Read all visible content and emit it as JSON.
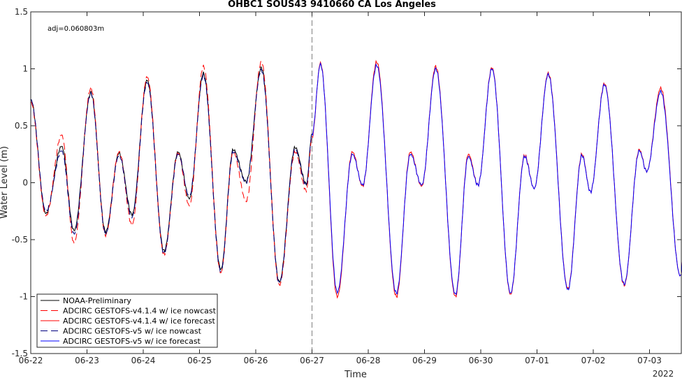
{
  "chart_data": {
    "type": "line",
    "title": "OHBC1 SOUS43 9410660 CA Los Angeles",
    "xlabel": "Time",
    "ylabel": "Water Level (m)",
    "annotation": "adj=0.060803m",
    "year_label": "2022",
    "x_range_days": [
      0,
      12.7
    ],
    "ylim": [
      -1.5,
      1.5
    ],
    "y_ticks": [
      {
        "value": 1.5,
        "label": "1.5"
      },
      {
        "value": 1,
        "label": "1"
      },
      {
        "value": 0.5,
        "label": "0.5"
      },
      {
        "value": 0,
        "label": "0"
      },
      {
        "value": -0.5,
        "label": "-0.5"
      },
      {
        "value": -1,
        "label": "-1"
      },
      {
        "value": -1.5,
        "label": "-1.5"
      }
    ],
    "x_ticks": [
      {
        "value": 0,
        "label": "06-22"
      },
      {
        "value": 1,
        "label": "06-23"
      },
      {
        "value": 2,
        "label": "06-24"
      },
      {
        "value": 3,
        "label": "06-25"
      },
      {
        "value": 4,
        "label": "06-26"
      },
      {
        "value": 5,
        "label": "06-27"
      },
      {
        "value": 6,
        "label": "06-28"
      },
      {
        "value": 7,
        "label": "06-29"
      },
      {
        "value": 8,
        "label": "06-30"
      },
      {
        "value": 9,
        "label": "07-01"
      },
      {
        "value": 10,
        "label": "07-02"
      },
      {
        "value": 11,
        "label": "07-03"
      }
    ],
    "forecast_start_day": 5,
    "grid": false,
    "legend_position": "bottom-left",
    "series": [
      {
        "name": "NOAA-Preliminary",
        "color": "#000000",
        "style": "solid",
        "x_end": 5.0,
        "extrema": [
          [
            0,
            0.73
          ],
          [
            0.27,
            -0.27
          ],
          [
            0.55,
            0.32
          ],
          [
            0.77,
            -0.42
          ],
          [
            1.07,
            0.79
          ],
          [
            1.33,
            -0.43
          ],
          [
            1.57,
            0.26
          ],
          [
            1.8,
            -0.28
          ],
          [
            2.07,
            0.9
          ],
          [
            2.37,
            -0.6
          ],
          [
            2.62,
            0.27
          ],
          [
            2.82,
            -0.14
          ],
          [
            3.07,
            0.96
          ],
          [
            3.38,
            -0.76
          ],
          [
            3.6,
            0.29
          ],
          [
            3.83,
            0.01
          ],
          [
            4.1,
            1.01
          ],
          [
            4.42,
            -0.87
          ],
          [
            4.7,
            0.31
          ],
          [
            4.9,
            -0.01
          ],
          [
            5.0,
            0.43
          ]
        ]
      },
      {
        "name": "ADCIRC GESTOFS-v4.1.4 w/ ice nowcast",
        "color": "#ff0000",
        "style": "dashed",
        "x_end": 5.0,
        "extrema": [
          [
            0,
            0.71
          ],
          [
            0.27,
            -0.29
          ],
          [
            0.55,
            0.42
          ],
          [
            0.77,
            -0.53
          ],
          [
            1.07,
            0.83
          ],
          [
            1.33,
            -0.46
          ],
          [
            1.57,
            0.27
          ],
          [
            1.8,
            -0.37
          ],
          [
            2.07,
            0.93
          ],
          [
            2.37,
            -0.63
          ],
          [
            2.62,
            0.26
          ],
          [
            2.82,
            -0.2
          ],
          [
            3.07,
            1.02
          ],
          [
            3.38,
            -0.79
          ],
          [
            3.6,
            0.27
          ],
          [
            3.83,
            -0.16
          ],
          [
            4.1,
            1.06
          ],
          [
            4.42,
            -0.9
          ],
          [
            4.7,
            0.27
          ],
          [
            4.9,
            -0.07
          ],
          [
            5.0,
            0.4
          ]
        ]
      },
      {
        "name": "ADCIRC GESTOFS-v4.1.4 w/ ice forecast",
        "color": "#ff0000",
        "style": "solid",
        "x_start": 5.0,
        "extrema": [
          [
            5.0,
            0.4
          ],
          [
            5.15,
            1.05
          ],
          [
            5.45,
            -1.0
          ],
          [
            5.72,
            0.27
          ],
          [
            5.9,
            -0.03
          ],
          [
            6.15,
            1.06
          ],
          [
            6.5,
            -1.0
          ],
          [
            6.75,
            0.27
          ],
          [
            6.95,
            -0.03
          ],
          [
            7.2,
            1.02
          ],
          [
            7.55,
            -1.0
          ],
          [
            7.78,
            0.25
          ],
          [
            7.95,
            -0.02
          ],
          [
            8.2,
            1.01
          ],
          [
            8.53,
            -0.98
          ],
          [
            8.78,
            0.24
          ],
          [
            8.95,
            -0.05
          ],
          [
            9.2,
            0.96
          ],
          [
            9.55,
            -0.93
          ],
          [
            9.8,
            0.25
          ],
          [
            9.95,
            -0.08
          ],
          [
            10.2,
            0.87
          ],
          [
            10.55,
            -0.9
          ],
          [
            10.82,
            0.29
          ],
          [
            10.95,
            0.1
          ],
          [
            11.2,
            0.83
          ],
          [
            11.55,
            -0.82
          ],
          [
            11.72,
            0.45
          ],
          [
            11.85,
            0.25
          ],
          [
            12.0,
            0.7
          ],
          [
            12.15,
            -0.12
          ],
          [
            12.3,
            0.25
          ],
          [
            12.45,
            0.18
          ],
          [
            12.7,
            -0.78
          ]
        ]
      },
      {
        "name": "ADCIRC GESTOFS-v5 w/ ice nowcast",
        "color": "#000080",
        "style": "dashed",
        "x_end": 5.0,
        "extrema": [
          [
            0,
            0.73
          ],
          [
            0.27,
            -0.25
          ],
          [
            0.55,
            0.28
          ],
          [
            0.77,
            -0.45
          ],
          [
            1.07,
            0.78
          ],
          [
            1.33,
            -0.45
          ],
          [
            1.57,
            0.24
          ],
          [
            1.8,
            -0.3
          ],
          [
            2.07,
            0.88
          ],
          [
            2.37,
            -0.62
          ],
          [
            2.62,
            0.25
          ],
          [
            2.82,
            -0.12
          ],
          [
            3.07,
            0.94
          ],
          [
            3.38,
            -0.78
          ],
          [
            3.6,
            0.27
          ],
          [
            3.83,
            0.0
          ],
          [
            4.1,
            0.99
          ],
          [
            4.42,
            -0.88
          ],
          [
            4.7,
            0.29
          ],
          [
            4.9,
            -0.02
          ],
          [
            5.0,
            0.42
          ]
        ]
      },
      {
        "name": "ADCIRC GESTOFS-v5 w/ ice forecast",
        "color": "#0000ff",
        "style": "solid",
        "x_start": 5.0,
        "extrema": [
          [
            5.0,
            0.42
          ],
          [
            5.15,
            1.04
          ],
          [
            5.45,
            -0.96
          ],
          [
            5.72,
            0.25
          ],
          [
            5.9,
            -0.02
          ],
          [
            6.15,
            1.03
          ],
          [
            6.5,
            -0.97
          ],
          [
            6.75,
            0.25
          ],
          [
            6.95,
            -0.02
          ],
          [
            7.2,
            1.0
          ],
          [
            7.55,
            -0.98
          ],
          [
            7.78,
            0.23
          ],
          [
            7.95,
            -0.02
          ],
          [
            8.2,
            1.0
          ],
          [
            8.53,
            -0.97
          ],
          [
            8.78,
            0.23
          ],
          [
            8.95,
            -0.05
          ],
          [
            9.2,
            0.95
          ],
          [
            9.55,
            -0.94
          ],
          [
            9.8,
            0.24
          ],
          [
            9.95,
            -0.08
          ],
          [
            10.2,
            0.86
          ],
          [
            10.55,
            -0.89
          ],
          [
            10.82,
            0.28
          ],
          [
            10.95,
            0.1
          ],
          [
            11.2,
            0.8
          ],
          [
            11.55,
            -0.82
          ],
          [
            11.72,
            0.44
          ],
          [
            11.85,
            0.24
          ],
          [
            12.0,
            0.68
          ],
          [
            12.15,
            -0.12
          ],
          [
            12.3,
            0.24
          ],
          [
            12.45,
            0.16
          ],
          [
            12.7,
            -0.78
          ]
        ]
      }
    ]
  }
}
